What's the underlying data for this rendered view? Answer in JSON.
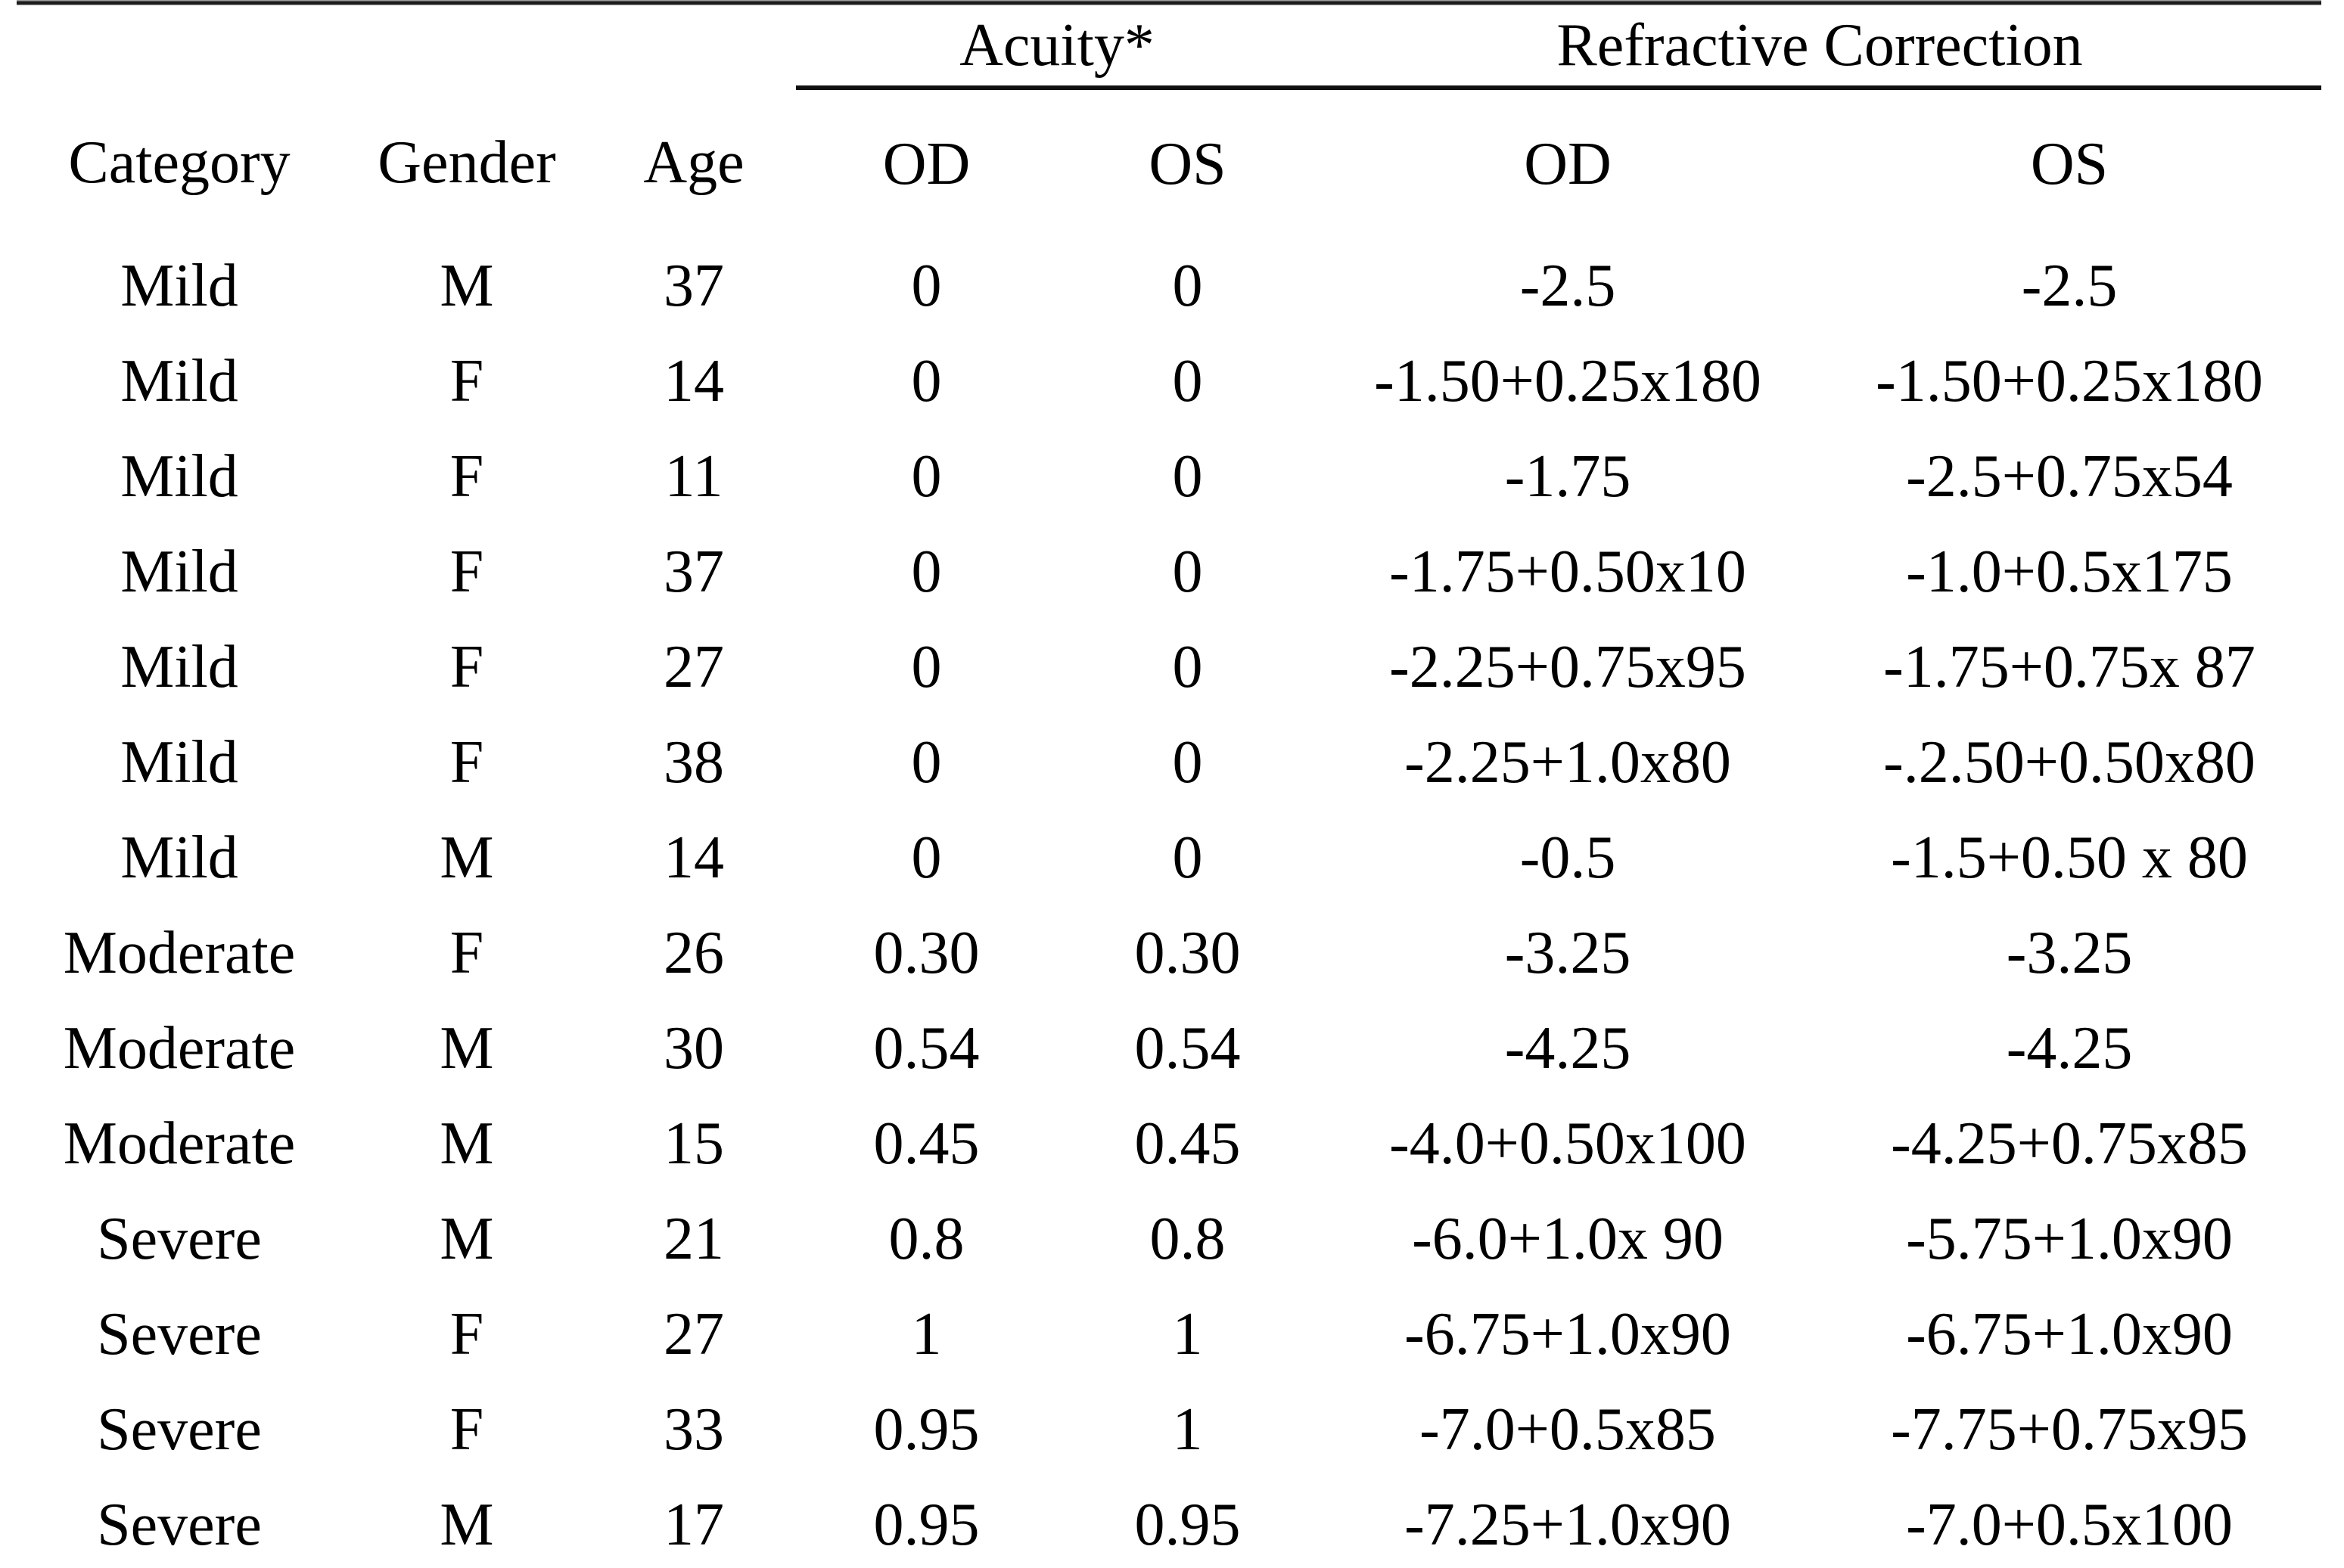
{
  "table": {
    "group_headers": {
      "acuity": "Acuity*",
      "refractive": "Refractive Correction"
    },
    "columns": [
      "Category",
      "Gender",
      "Age",
      "OD",
      "OS",
      "OD",
      "OS"
    ],
    "rows": [
      [
        "Mild",
        "M",
        "37",
        "0",
        "0",
        "-2.5",
        "-2.5"
      ],
      [
        "Mild",
        "F",
        "14",
        "0",
        "0",
        "-1.50+0.25x180",
        "-1.50+0.25x180"
      ],
      [
        "Mild",
        "F",
        "11",
        "0",
        "0",
        "-1.75",
        "-2.5+0.75x54"
      ],
      [
        "Mild",
        "F",
        "37",
        "0",
        "0",
        "-1.75+0.50x10",
        "-1.0+0.5x175"
      ],
      [
        "Mild",
        "F",
        "27",
        "0",
        "0",
        "-2.25+0.75x95",
        "-1.75+0.75x 87"
      ],
      [
        "Mild",
        "F",
        "38",
        "0",
        "0",
        "-2.25+1.0x80",
        "-.2.50+0.50x80"
      ],
      [
        "Mild",
        "M",
        "14",
        "0",
        "0",
        "-0.5",
        "-1.5+0.50 x 80"
      ],
      [
        "Moderate",
        "F",
        "26",
        "0.30",
        "0.30",
        "-3.25",
        "-3.25"
      ],
      [
        "Moderate",
        "M",
        "30",
        "0.54",
        "0.54",
        "-4.25",
        "-4.25"
      ],
      [
        "Moderate",
        "M",
        "15",
        "0.45",
        "0.45",
        "-4.0+0.50x100",
        "-4.25+0.75x85"
      ],
      [
        "Severe",
        "M",
        "21",
        "0.8",
        "0.8",
        "-6.0+1.0x 90",
        "-5.75+1.0x90"
      ],
      [
        "Severe",
        "F",
        "27",
        "1",
        "1",
        "-6.75+1.0x90",
        "-6.75+1.0x90"
      ],
      [
        "Severe",
        "F",
        "33",
        "0.95",
        "1",
        "-7.0+0.5x85",
        "-7.75+0.75x95"
      ],
      [
        "Severe",
        "M",
        "17",
        "0.95",
        "0.95",
        "-7.25+1.0x90",
        "-7.0+0.5x100"
      ]
    ]
  },
  "colors": {
    "text": "#000000",
    "rule": "#101010",
    "background": "#ffffff"
  }
}
